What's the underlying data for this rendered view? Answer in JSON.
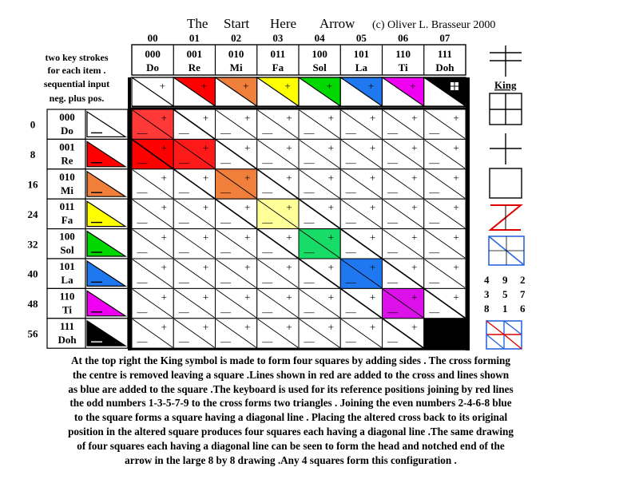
{
  "title": {
    "words": [
      "The",
      "Start",
      "Here",
      "Arrow"
    ],
    "copyright": "(c) Oliver L. Brasseur  2000"
  },
  "column_numbers": [
    "00",
    "01",
    "02",
    "03",
    "04",
    "05",
    "06",
    "07"
  ],
  "notes": {
    "key_instructions": [
      "two key strokes",
      "for each item .",
      "sequential input",
      "neg. plus pos."
    ]
  },
  "notes_top": [
    {
      "code": "000",
      "name": "Do"
    },
    {
      "code": "001",
      "name": "Re"
    },
    {
      "code": "010",
      "name": "Mi"
    },
    {
      "code": "011",
      "name": "Fa"
    },
    {
      "code": "100",
      "name": "Sol"
    },
    {
      "code": "101",
      "name": "La"
    },
    {
      "code": "110",
      "name": "Ti"
    },
    {
      "code": "111",
      "name": "Doh"
    }
  ],
  "note_colors": [
    "#ffffff",
    "#ff0000",
    "#f07f3c",
    "#ffff00",
    "#00d800",
    "#1f78f0",
    "#f000f0",
    "#000000"
  ],
  "row_numbers": [
    "0",
    "8",
    "16",
    "24",
    "32",
    "40",
    "48",
    "56"
  ],
  "grid": {
    "size": 8,
    "cell_signs": {
      "positive": "+",
      "negative": "—"
    },
    "diagonal_fill_colors": [
      "#ff3838",
      "#ff1a1a",
      "#f07f3c",
      "#ffff99",
      "#18dc68",
      "#1f78f0",
      "#dc10e8",
      "#000000"
    ],
    "extra_fill": {
      "row": 1,
      "col": 0,
      "color": "#ff0000"
    }
  },
  "side_panel": {
    "king_label": "King",
    "shapes": [
      "cross-icon",
      "king-square-icon",
      "plus-icon",
      "square-icon",
      "red-zigzag-icon",
      "blue-diagonal-square-icon",
      "combined-squares-icon"
    ],
    "magic_square": [
      [
        "4",
        "9",
        "2"
      ],
      [
        "3",
        "5",
        "7"
      ],
      [
        "8",
        "1",
        "6"
      ]
    ]
  },
  "caption": [
    "At the top right the King symbol is made to form four squares by adding sides . The cross forming",
    "the centre is removed leaving a square .Lines shown in red are added to the cross and lines shown",
    "as blue are added to the square .The keyboard is used for its reference positions joining by red lines",
    "the odd numbers  1-3-5-7-9 to the cross forms two triangles . Joining the even numbers 2-4-6-8 blue",
    "to the square forms a square having a diagonal line .  Placing the altered cross back to its original",
    "position in the altered square produces four squares each having a diagonal line .The same drawing",
    "of four squares each having a diagonal line can be seen to form the  head and notched end of  the",
    "arrow in the large  8 by 8 drawing .Any  4 squares  form this configuration ."
  ]
}
